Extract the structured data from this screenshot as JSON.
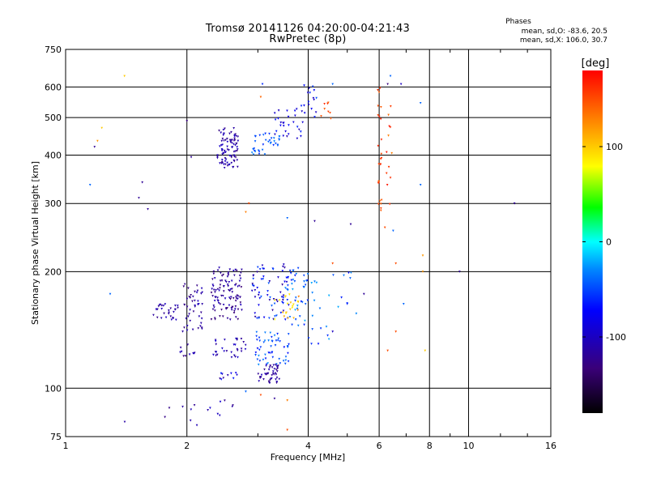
{
  "chart_data": {
    "type": "scatter",
    "title": "Tromsø 20141126 04:20:00-04:21:43",
    "subtitle": "RwPretec (8p)",
    "xlabel": "Frequency [MHz]",
    "ylabel": "Stationary phase Virtual Height [km]",
    "x_scale": "log",
    "y_scale": "log",
    "xlim": [
      1,
      16
    ],
    "ylim": [
      75,
      750
    ],
    "x_ticks": [
      "1",
      "2",
      "4",
      "6",
      "8",
      "10",
      "16"
    ],
    "y_ticks": [
      "75",
      "100",
      "200",
      "300",
      "400",
      "500",
      "600",
      "750"
    ],
    "grid": true,
    "colorbar": {
      "label": "[deg]",
      "range": [
        -180,
        180
      ],
      "ticks": [
        "100",
        "0",
        "-100"
      ]
    },
    "phase_stats": {
      "title": "Phases",
      "line1": "mean, sd,O: -83.6, 20.5",
      "line2": "mean, sd,X: 106.0, 30.7"
    },
    "clusters": [
      {
        "fmin": 2.38,
        "fmax": 2.68,
        "hmin": 370,
        "hmax": 470,
        "n": 90,
        "pmin": -130,
        "pmax": -95
      },
      {
        "fmin": 2.9,
        "fmax": 3.4,
        "hmin": 400,
        "hmax": 460,
        "n": 35,
        "pmin": -60,
        "pmax": -30
      },
      {
        "fmin": 3.3,
        "fmax": 3.9,
        "hmin": 440,
        "hmax": 540,
        "n": 30,
        "pmin": -110,
        "pmax": -60
      },
      {
        "fmin": 3.9,
        "fmax": 4.2,
        "hmin": 500,
        "hmax": 610,
        "n": 16,
        "pmin": -100,
        "pmax": -40
      },
      {
        "fmin": 4.3,
        "fmax": 4.6,
        "hmin": 480,
        "hmax": 560,
        "n": 8,
        "pmin": 140,
        "pmax": 165
      },
      {
        "fmin": 1.65,
        "fmax": 1.9,
        "hmin": 150,
        "hmax": 165,
        "n": 30,
        "pmin": -130,
        "pmax": -100
      },
      {
        "fmin": 1.95,
        "fmax": 2.2,
        "hmin": 140,
        "hmax": 190,
        "n": 45,
        "pmin": -130,
        "pmax": -100
      },
      {
        "fmin": 2.3,
        "fmax": 2.75,
        "hmin": 150,
        "hmax": 205,
        "n": 110,
        "pmin": -135,
        "pmax": -100
      },
      {
        "fmin": 2.9,
        "fmax": 3.6,
        "hmin": 150,
        "hmax": 210,
        "n": 70,
        "pmin": -120,
        "pmax": -40
      },
      {
        "fmin": 3.5,
        "fmax": 4.1,
        "hmin": 145,
        "hmax": 205,
        "n": 45,
        "pmin": -70,
        "pmax": -20
      },
      {
        "fmin": 3.3,
        "fmax": 3.9,
        "hmin": 150,
        "hmax": 175,
        "n": 22,
        "pmin": 70,
        "pmax": 130
      },
      {
        "fmin": 1.9,
        "fmax": 2.1,
        "hmin": 120,
        "hmax": 130,
        "n": 10,
        "pmin": -130,
        "pmax": -100
      },
      {
        "fmin": 2.3,
        "fmax": 2.8,
        "hmin": 120,
        "hmax": 135,
        "n": 30,
        "pmin": -120,
        "pmax": -90
      },
      {
        "fmin": 2.95,
        "fmax": 3.6,
        "hmin": 115,
        "hmax": 140,
        "n": 55,
        "pmin": -70,
        "pmax": -25
      },
      {
        "fmin": 3.0,
        "fmax": 3.4,
        "hmin": 103,
        "hmax": 115,
        "n": 45,
        "pmin": -130,
        "pmax": -100
      },
      {
        "fmin": 2.4,
        "fmax": 2.8,
        "hmin": 105,
        "hmax": 110,
        "n": 10,
        "pmin": -120,
        "pmax": -60
      },
      {
        "fmin": 1.4,
        "fmax": 2.8,
        "hmin": 80,
        "hmax": 95,
        "n": 16,
        "pmin": -130,
        "pmax": -90
      },
      {
        "fmin": 5.95,
        "fmax": 6.1,
        "hmin": 280,
        "hmax": 600,
        "n": 26,
        "pmin": 140,
        "pmax": 170
      },
      {
        "fmin": 6.25,
        "fmax": 6.45,
        "hmin": 280,
        "hmax": 560,
        "n": 12,
        "pmin": 130,
        "pmax": 175
      },
      {
        "fmin": 4.0,
        "fmax": 5.5,
        "hmin": 130,
        "hmax": 200,
        "n": 22,
        "pmin": -70,
        "pmax": -20
      }
    ],
    "points": [
      {
        "f": 1.4,
        "h": 640,
        "p": 100
      },
      {
        "f": 1.23,
        "h": 470,
        "p": 100
      },
      {
        "f": 1.2,
        "h": 435,
        "p": 120
      },
      {
        "f": 1.18,
        "h": 420,
        "p": -120
      },
      {
        "f": 1.15,
        "h": 335,
        "p": -40
      },
      {
        "f": 1.29,
        "h": 175,
        "p": -40
      },
      {
        "f": 1.55,
        "h": 340,
        "p": -120
      },
      {
        "f": 1.52,
        "h": 310,
        "p": -120
      },
      {
        "f": 1.6,
        "h": 290,
        "p": -120
      },
      {
        "f": 2.0,
        "h": 490,
        "p": -130
      },
      {
        "f": 2.05,
        "h": 395,
        "p": -120
      },
      {
        "f": 2.85,
        "h": 300,
        "p": 150
      },
      {
        "f": 2.8,
        "h": 285,
        "p": 130
      },
      {
        "f": 3.08,
        "h": 610,
        "p": -60
      },
      {
        "f": 3.05,
        "h": 565,
        "p": 140
      },
      {
        "f": 3.55,
        "h": 275,
        "p": -40
      },
      {
        "f": 4.15,
        "h": 270,
        "p": -120
      },
      {
        "f": 4.6,
        "h": 610,
        "p": -40
      },
      {
        "f": 5.1,
        "h": 265,
        "p": -120
      },
      {
        "f": 6.4,
        "h": 640,
        "p": -40
      },
      {
        "f": 6.3,
        "h": 610,
        "p": -130
      },
      {
        "f": 6.8,
        "h": 610,
        "p": -100
      },
      {
        "f": 7.6,
        "h": 545,
        "p": -40
      },
      {
        "f": 7.6,
        "h": 335,
        "p": -40
      },
      {
        "f": 7.7,
        "h": 220,
        "p": 120
      },
      {
        "f": 7.7,
        "h": 200,
        "p": 120
      },
      {
        "f": 9.5,
        "h": 200,
        "p": -120
      },
      {
        "f": 13.0,
        "h": 300,
        "p": -120
      },
      {
        "f": 6.6,
        "h": 210,
        "p": 150
      },
      {
        "f": 6.9,
        "h": 165,
        "p": -40
      },
      {
        "f": 6.6,
        "h": 140,
        "p": 150
      },
      {
        "f": 6.3,
        "h": 125,
        "p": 150
      },
      {
        "f": 7.8,
        "h": 125,
        "p": 100
      },
      {
        "f": 6.2,
        "h": 260,
        "p": 150
      },
      {
        "f": 6.5,
        "h": 255,
        "p": -40
      },
      {
        "f": 2.8,
        "h": 98,
        "p": -40
      },
      {
        "f": 3.05,
        "h": 96,
        "p": 150
      },
      {
        "f": 3.3,
        "h": 94,
        "p": -120
      },
      {
        "f": 3.55,
        "h": 93,
        "p": 130
      },
      {
        "f": 3.55,
        "h": 78,
        "p": 150
      },
      {
        "f": 5.5,
        "h": 175,
        "p": -120
      },
      {
        "f": 5.0,
        "h": 165,
        "p": -60
      },
      {
        "f": 4.6,
        "h": 140,
        "p": -100
      },
      {
        "f": 4.6,
        "h": 210,
        "p": 150
      }
    ]
  }
}
